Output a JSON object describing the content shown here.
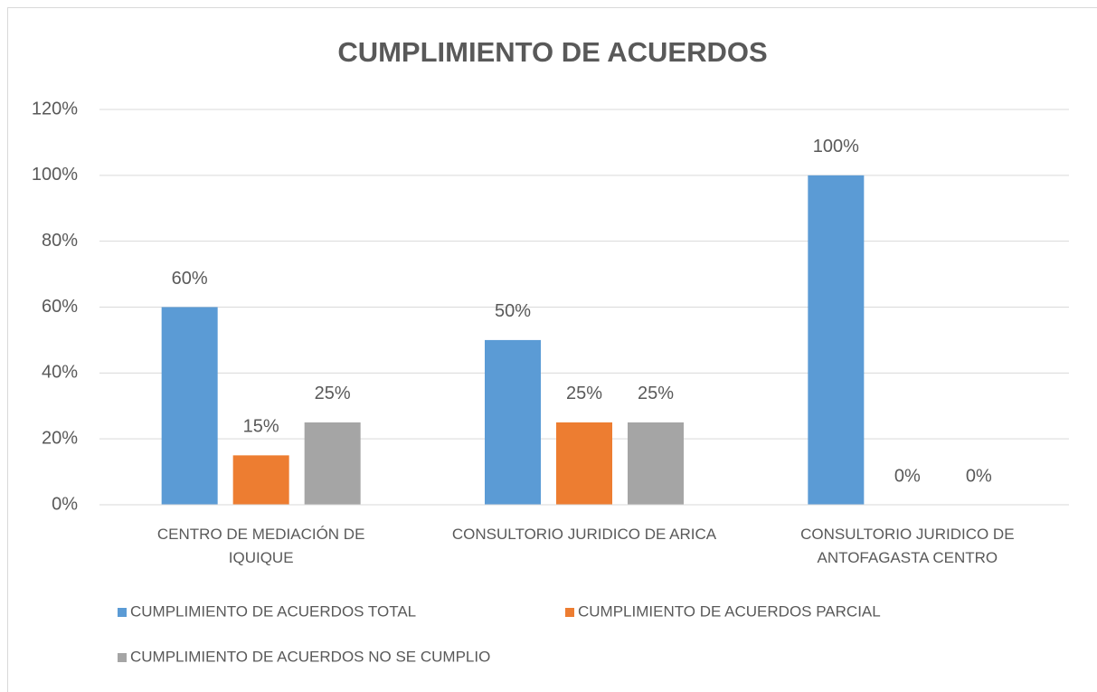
{
  "chart_data": {
    "type": "bar",
    "title": "CUMPLIMIENTO DE ACUERDOS",
    "categories": [
      "CENTRO DE MEDIACIÓN DE IQUIQUE",
      "CONSULTORIO JURIDICO DE ARICA",
      "CONSULTORIO JURIDICO DE ANTOFAGASTA CENTRO"
    ],
    "series": [
      {
        "name": "CUMPLIMIENTO DE ACUERDOS TOTAL",
        "color": "#5b9bd5",
        "values": [
          60,
          50,
          100
        ],
        "value_labels": [
          "60%",
          "50%",
          "100%"
        ]
      },
      {
        "name": "CUMPLIMIENTO DE ACUERDOS PARCIAL",
        "color": "#ed7d31",
        "values": [
          15,
          25,
          0
        ],
        "value_labels": [
          "15%",
          "25%",
          "0%"
        ]
      },
      {
        "name": "CUMPLIMIENTO DE ACUERDOS NO SE CUMPLIO",
        "color": "#a5a5a5",
        "values": [
          25,
          25,
          0
        ],
        "value_labels": [
          "25%",
          "25%",
          "0%"
        ]
      }
    ],
    "ylim": [
      0,
      120
    ],
    "yticks": [
      {
        "value": 0,
        "label": "0%"
      },
      {
        "value": 20,
        "label": "20%"
      },
      {
        "value": 40,
        "label": "40%"
      },
      {
        "value": 60,
        "label": "60%"
      },
      {
        "value": 80,
        "label": "80%"
      },
      {
        "value": 100,
        "label": "100%"
      },
      {
        "value": 120,
        "label": "120%"
      }
    ],
    "grid": true
  }
}
